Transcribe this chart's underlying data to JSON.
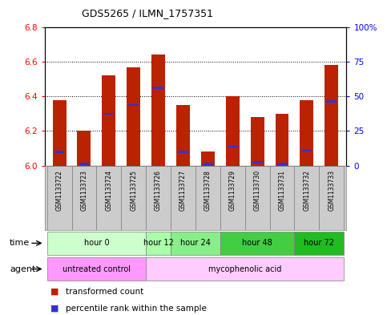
{
  "title": "GDS5265 / ILMN_1757351",
  "samples": [
    "GSM1133722",
    "GSM1133723",
    "GSM1133724",
    "GSM1133725",
    "GSM1133726",
    "GSM1133727",
    "GSM1133728",
    "GSM1133729",
    "GSM1133730",
    "GSM1133731",
    "GSM1133732",
    "GSM1133733"
  ],
  "bar_tops": [
    6.38,
    6.2,
    6.52,
    6.57,
    6.64,
    6.35,
    6.08,
    6.4,
    6.28,
    6.3,
    6.38,
    6.58
  ],
  "percentile_values": [
    6.08,
    6.01,
    6.3,
    6.35,
    6.45,
    6.08,
    6.01,
    6.11,
    6.02,
    6.01,
    6.09,
    6.37
  ],
  "ylim_left": [
    6.0,
    6.8
  ],
  "ylim_right": [
    0,
    100
  ],
  "yticks_left": [
    6.0,
    6.2,
    6.4,
    6.6,
    6.8
  ],
  "yticks_right": [
    0,
    25,
    50,
    75,
    100
  ],
  "ytick_labels_right": [
    "0",
    "25",
    "50",
    "75",
    "100%"
  ],
  "bar_color": "#bb2200",
  "percentile_color": "#3333cc",
  "time_groups": [
    {
      "label": "hour 0",
      "start": 0,
      "end": 3,
      "color": "#ccffcc"
    },
    {
      "label": "hour 12",
      "start": 4,
      "end": 4,
      "color": "#aaffaa"
    },
    {
      "label": "hour 24",
      "start": 5,
      "end": 6,
      "color": "#88ee88"
    },
    {
      "label": "hour 48",
      "start": 7,
      "end": 9,
      "color": "#44cc44"
    },
    {
      "label": "hour 72",
      "start": 10,
      "end": 11,
      "color": "#22bb22"
    }
  ],
  "agent_groups": [
    {
      "label": "untreated control",
      "start": 0,
      "end": 3,
      "color": "#ff99ff"
    },
    {
      "label": "mycophenolic acid",
      "start": 4,
      "end": 11,
      "color": "#ffccff"
    }
  ],
  "grid_color": "#000000",
  "plot_bg": "#ffffff",
  "sample_bg": "#cccccc",
  "bar_bottom": 6.0
}
